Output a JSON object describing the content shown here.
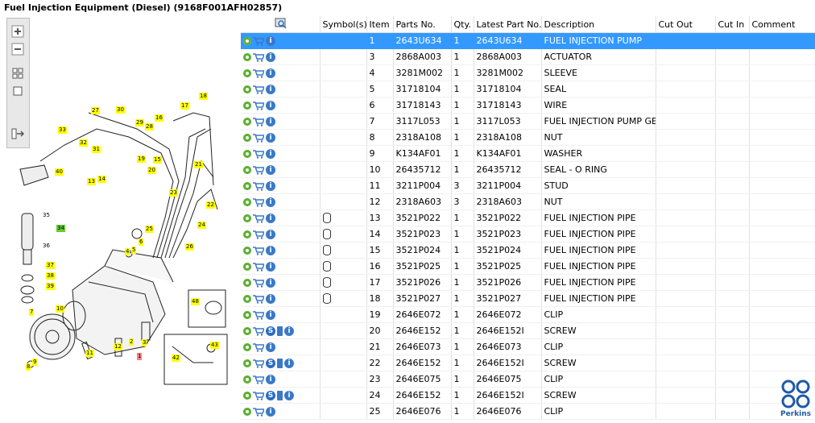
{
  "window": {
    "title": "Fuel Injection Equipment (Diesel) (9168F001AFH02857)"
  },
  "toolbar": {
    "zoom_in_icon": "plus-icon",
    "zoom_out_icon": "minus-icon",
    "fit_icon": "grid-icon",
    "frame_icon": "square-icon",
    "export_icon": "export-icon"
  },
  "diagram": {
    "callouts": [
      "33",
      "32",
      "31",
      "30",
      "29",
      "28",
      "27",
      "26",
      "25",
      "24",
      "23",
      "22",
      "21",
      "20",
      "19",
      "18",
      "17",
      "16",
      "15",
      "14",
      "13",
      "12",
      "11",
      "10",
      "9",
      "8",
      "7",
      "6",
      "5",
      "4",
      "3",
      "2",
      "1",
      "34",
      "35",
      "36",
      "37",
      "38",
      "39",
      "40",
      "42",
      "43",
      "48"
    ]
  },
  "grid": {
    "columns": [
      "",
      "Symbol(s)",
      "Item",
      "Parts No.",
      "Qty.",
      "Latest Part No.",
      "Description",
      "Cut Out",
      "Cut In",
      "Comment"
    ],
    "rows": [
      {
        "item": "1",
        "parts_no": "2643U634",
        "qty": "1",
        "latest": "2643U634",
        "desc": "FUEL INJECTION PUMP",
        "sym": "",
        "s": false,
        "book": false,
        "sel": true
      },
      {
        "item": "3",
        "parts_no": "2868A003",
        "qty": "1",
        "latest": "2868A003",
        "desc": "ACTUATOR",
        "sym": "",
        "s": false,
        "book": false,
        "sel": false
      },
      {
        "item": "4",
        "parts_no": "3281M002",
        "qty": "1",
        "latest": "3281M002",
        "desc": "SLEEVE",
        "sym": "",
        "s": false,
        "book": false,
        "sel": false
      },
      {
        "item": "5",
        "parts_no": "31718104",
        "qty": "1",
        "latest": "31718104",
        "desc": "SEAL",
        "sym": "",
        "s": false,
        "book": false,
        "sel": false
      },
      {
        "item": "6",
        "parts_no": "31718143",
        "qty": "1",
        "latest": "31718143",
        "desc": "WIRE",
        "sym": "",
        "s": false,
        "book": false,
        "sel": false
      },
      {
        "item": "7",
        "parts_no": "3117L053",
        "qty": "1",
        "latest": "3117L053",
        "desc": "FUEL INJECTION PUMP GEA",
        "sym": "",
        "s": false,
        "book": false,
        "sel": false
      },
      {
        "item": "8",
        "parts_no": "2318A108",
        "qty": "1",
        "latest": "2318A108",
        "desc": "NUT",
        "sym": "",
        "s": false,
        "book": false,
        "sel": false
      },
      {
        "item": "9",
        "parts_no": "K134AF01",
        "qty": "1",
        "latest": "K134AF01",
        "desc": "WASHER",
        "sym": "",
        "s": false,
        "book": false,
        "sel": false
      },
      {
        "item": "10",
        "parts_no": "26435712",
        "qty": "1",
        "latest": "26435712",
        "desc": "SEAL - O RING",
        "sym": "",
        "s": false,
        "book": false,
        "sel": false
      },
      {
        "item": "11",
        "parts_no": "3211P004",
        "qty": "3",
        "latest": "3211P004",
        "desc": "STUD",
        "sym": "",
        "s": false,
        "book": false,
        "sel": false
      },
      {
        "item": "12",
        "parts_no": "2318A603",
        "qty": "3",
        "latest": "2318A603",
        "desc": "NUT",
        "sym": "",
        "s": false,
        "book": false,
        "sel": false
      },
      {
        "item": "13",
        "parts_no": "3521P022",
        "qty": "1",
        "latest": "3521P022",
        "desc": "FUEL INJECTION PIPE",
        "sym": "cyl",
        "s": false,
        "book": false,
        "sel": false
      },
      {
        "item": "14",
        "parts_no": "3521P023",
        "qty": "1",
        "latest": "3521P023",
        "desc": "FUEL INJECTION PIPE",
        "sym": "cyl",
        "s": false,
        "book": false,
        "sel": false
      },
      {
        "item": "15",
        "parts_no": "3521P024",
        "qty": "1",
        "latest": "3521P024",
        "desc": "FUEL INJECTION PIPE",
        "sym": "cyl",
        "s": false,
        "book": false,
        "sel": false
      },
      {
        "item": "16",
        "parts_no": "3521P025",
        "qty": "1",
        "latest": "3521P025",
        "desc": "FUEL INJECTION PIPE",
        "sym": "cyl",
        "s": false,
        "book": false,
        "sel": false
      },
      {
        "item": "17",
        "parts_no": "3521P026",
        "qty": "1",
        "latest": "3521P026",
        "desc": "FUEL INJECTION PIPE",
        "sym": "cyl",
        "s": false,
        "book": false,
        "sel": false
      },
      {
        "item": "18",
        "parts_no": "3521P027",
        "qty": "1",
        "latest": "3521P027",
        "desc": "FUEL INJECTION PIPE",
        "sym": "cyl",
        "s": false,
        "book": false,
        "sel": false
      },
      {
        "item": "19",
        "parts_no": "2646E072",
        "qty": "1",
        "latest": "2646E072",
        "desc": "CLIP",
        "sym": "",
        "s": false,
        "book": false,
        "sel": false
      },
      {
        "item": "20",
        "parts_no": "2646E152",
        "qty": "1",
        "latest": "2646E152I",
        "desc": "SCREW",
        "sym": "",
        "s": true,
        "book": true,
        "sel": false
      },
      {
        "item": "21",
        "parts_no": "2646E073",
        "qty": "1",
        "latest": "2646E073",
        "desc": "CLIP",
        "sym": "",
        "s": false,
        "book": false,
        "sel": false
      },
      {
        "item": "22",
        "parts_no": "2646E152",
        "qty": "1",
        "latest": "2646E152I",
        "desc": "SCREW",
        "sym": "",
        "s": true,
        "book": true,
        "sel": false
      },
      {
        "item": "23",
        "parts_no": "2646E075",
        "qty": "1",
        "latest": "2646E075",
        "desc": "CLIP",
        "sym": "",
        "s": false,
        "book": false,
        "sel": false
      },
      {
        "item": "24",
        "parts_no": "2646E152",
        "qty": "1",
        "latest": "2646E152I",
        "desc": "SCREW",
        "sym": "",
        "s": true,
        "book": true,
        "sel": false
      },
      {
        "item": "25",
        "parts_no": "2646E076",
        "qty": "1",
        "latest": "2646E076",
        "desc": "CLIP",
        "sym": "",
        "s": false,
        "book": false,
        "sel": false
      }
    ]
  },
  "logo": {
    "text": "Perkins"
  },
  "colors": {
    "selection": "#3399ff",
    "gear": "#5cb030",
    "info": "#3a79c8",
    "callout": "#ffff00"
  }
}
